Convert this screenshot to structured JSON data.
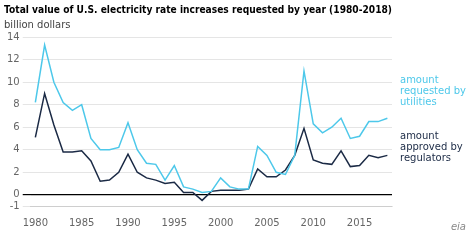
{
  "chart_data": {
    "type": "line",
    "title": "Total value of U.S. electricity rate increases requested by year (1980-2018)",
    "subtitle": "billion dollars",
    "x": [
      1980,
      1981,
      1982,
      1983,
      1984,
      1985,
      1986,
      1987,
      1988,
      1989,
      1990,
      1991,
      1992,
      1993,
      1994,
      1995,
      1996,
      1997,
      1998,
      1999,
      2000,
      2001,
      2002,
      2003,
      2004,
      2005,
      2006,
      2007,
      2008,
      2009,
      2010,
      2011,
      2012,
      2013,
      2014,
      2015,
      2016,
      2017,
      2018
    ],
    "series": [
      {
        "name": "amount\nrequested by\nutilities",
        "color": "#4dc8ea",
        "values": [
          8.2,
          13.3,
          10.0,
          8.2,
          7.5,
          8.0,
          5.0,
          4.0,
          4.0,
          4.2,
          6.4,
          4.0,
          2.8,
          2.7,
          1.3,
          2.6,
          0.7,
          0.5,
          0.2,
          0.3,
          1.5,
          0.7,
          0.5,
          0.5,
          4.3,
          3.5,
          2.0,
          1.8,
          3.5,
          11.0,
          6.3,
          5.5,
          6.0,
          6.8,
          5.0,
          5.2,
          6.5,
          6.5,
          6.8
        ]
      },
      {
        "name": "amount\napproved by\nregulators",
        "color": "#1b2a45",
        "values": [
          5.1,
          9.0,
          6.2,
          3.8,
          3.8,
          3.9,
          3.0,
          1.2,
          1.3,
          2.0,
          3.6,
          2.0,
          1.5,
          1.3,
          1.0,
          1.1,
          0.2,
          0.2,
          -0.5,
          0.3,
          0.4,
          0.4,
          0.4,
          0.5,
          2.3,
          1.6,
          1.6,
          2.2,
          3.5,
          5.9,
          3.1,
          2.8,
          2.7,
          3.9,
          2.5,
          2.6,
          3.5,
          3.3,
          3.5
        ]
      }
    ],
    "xlim": [
      1979.5,
      2018.5
    ],
    "xticks": [
      1980,
      1985,
      1990,
      1995,
      2000,
      2005,
      2010,
      2015
    ],
    "ylim": [
      -1,
      14
    ],
    "yticks": [
      -1,
      0,
      2,
      4,
      6,
      8,
      10,
      12,
      14
    ],
    "grid": true,
    "annotations": [
      "eia"
    ]
  }
}
